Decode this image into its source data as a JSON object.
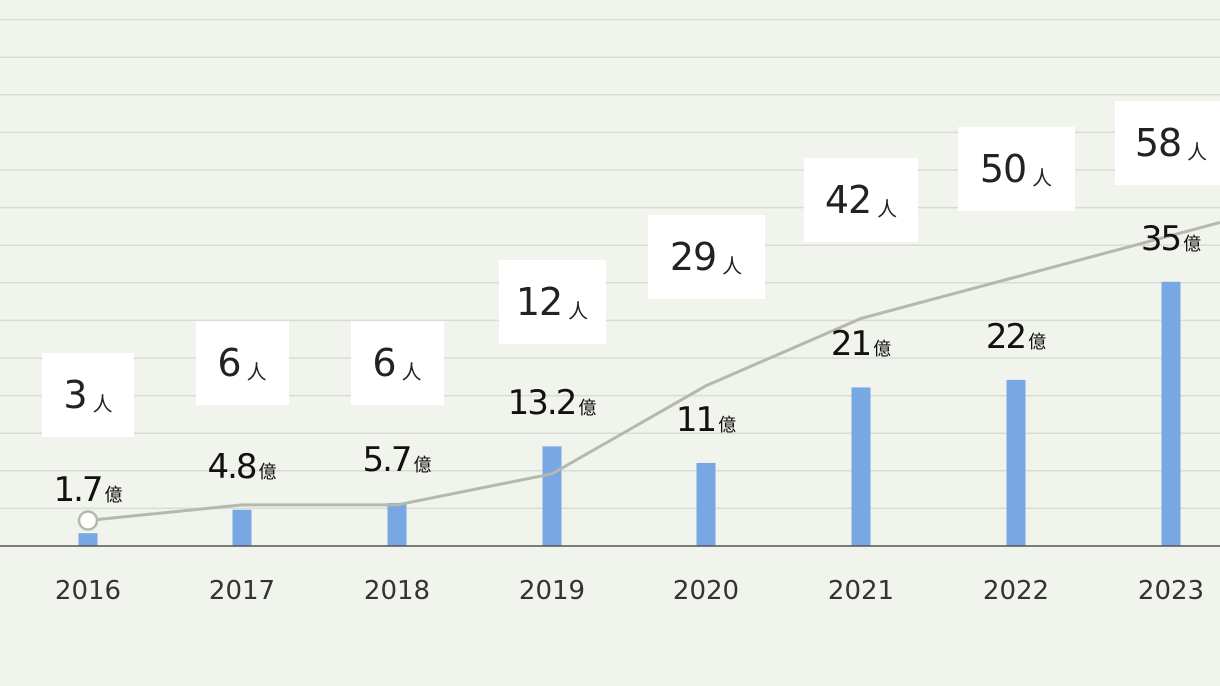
{
  "chart_data": {
    "type": "bar",
    "categories": [
      "2016",
      "2017",
      "2018",
      "2019",
      "2020",
      "2021",
      "2022",
      "2023"
    ],
    "series": [
      {
        "name": "revenue",
        "type": "bar",
        "unit": "億",
        "values": [
          1.7,
          4.8,
          5.7,
          13.2,
          11,
          21,
          22,
          35
        ],
        "labels": [
          "1.7",
          "4.8",
          "5.7",
          "13.2",
          "11",
          "21",
          "22",
          "35"
        ],
        "color": "#77a8e4"
      },
      {
        "name": "employees",
        "type": "line",
        "unit": "人",
        "values": [
          3,
          6,
          6,
          12,
          29,
          42,
          50,
          58
        ],
        "labels": [
          "3",
          "6",
          "6",
          "12",
          "29",
          "42",
          "50",
          "58"
        ],
        "color": "#b5b8ad"
      }
    ],
    "grid": true,
    "title": "",
    "xlabel": "",
    "ylabel": ""
  }
}
